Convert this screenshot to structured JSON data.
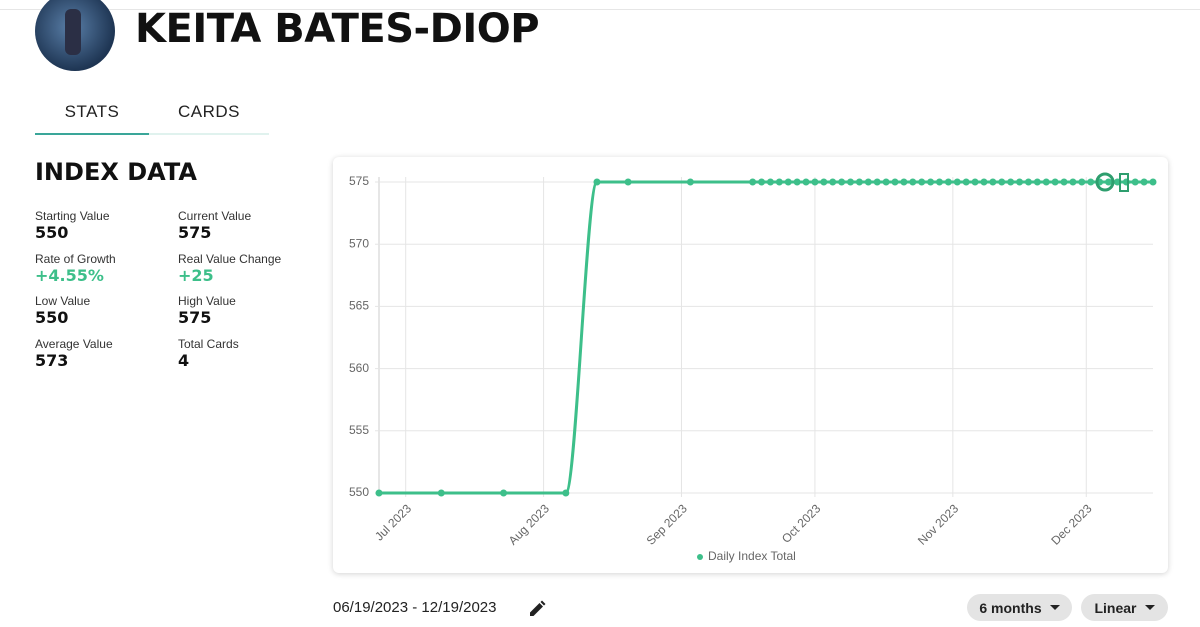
{
  "header": {
    "title": "KEITA BATES-DIOP"
  },
  "tabs": [
    "STATS",
    "CARDS"
  ],
  "index_data": {
    "title": "INDEX DATA",
    "stats": [
      {
        "label": "Starting Value",
        "value": "550"
      },
      {
        "label": "Current Value",
        "value": "575"
      },
      {
        "label": "Rate of Growth",
        "value": "+4.55%"
      },
      {
        "label": "Real Value Change",
        "value": "+25"
      },
      {
        "label": "Low Value",
        "value": "550"
      },
      {
        "label": "High Value",
        "value": "575"
      },
      {
        "label": "Average Value",
        "value": "573"
      },
      {
        "label": "Total Cards",
        "value": "4"
      }
    ]
  },
  "chart_data": {
    "type": "line",
    "x": [
      "2023-06-25",
      "2023-07-09",
      "2023-07-23",
      "2023-08-06",
      "2023-08-13",
      "2023-08-20",
      "2023-09-03",
      "2023-09-17",
      "2023-09-19",
      "2023-09-21",
      "2023-09-23",
      "2023-09-25",
      "2023-09-27",
      "2023-09-29",
      "2023-10-01",
      "2023-10-03",
      "2023-10-05",
      "2023-10-07",
      "2023-10-09",
      "2023-10-11",
      "2023-10-13",
      "2023-10-15",
      "2023-10-17",
      "2023-10-19",
      "2023-10-21",
      "2023-10-23",
      "2023-10-25",
      "2023-10-27",
      "2023-10-29",
      "2023-10-31",
      "2023-11-02",
      "2023-11-04",
      "2023-11-06",
      "2023-11-08",
      "2023-11-10",
      "2023-11-12",
      "2023-11-14",
      "2023-11-16",
      "2023-11-18",
      "2023-11-20",
      "2023-11-22",
      "2023-11-24",
      "2023-11-26",
      "2023-11-28",
      "2023-11-30",
      "2023-12-02",
      "2023-12-04",
      "2023-12-06",
      "2023-12-08",
      "2023-12-10",
      "2023-12-12",
      "2023-12-14",
      "2023-12-16"
    ],
    "series": [
      {
        "name": "Daily Index Total",
        "color": "#3dbf8a",
        "values": [
          550,
          550,
          550,
          550,
          575,
          575,
          575,
          575,
          575,
          575,
          575,
          575,
          575,
          575,
          575,
          575,
          575,
          575,
          575,
          575,
          575,
          575,
          575,
          575,
          575,
          575,
          575,
          575,
          575,
          575,
          575,
          575,
          575,
          575,
          575,
          575,
          575,
          575,
          575,
          575,
          575,
          575,
          575,
          575,
          575,
          575,
          575,
          575,
          575,
          575,
          575,
          575,
          575
        ]
      }
    ],
    "xlim": [
      "2023-06-25",
      "2023-12-16"
    ],
    "xticks": [
      {
        "value": "2023-07",
        "label": "Jul 2023"
      },
      {
        "value": "2023-08",
        "label": "Aug 2023"
      },
      {
        "value": "2023-09",
        "label": "Sep 2023"
      },
      {
        "value": "2023-10",
        "label": "Oct 2023"
      },
      {
        "value": "2023-11",
        "label": "Nov 2023"
      },
      {
        "value": "2023-12",
        "label": "Dec 2023"
      }
    ],
    "ylim": [
      550,
      575
    ],
    "yticks": [
      550,
      555,
      560,
      565,
      570,
      575
    ],
    "grid": true,
    "legend": "bottom"
  },
  "controls": {
    "date_range": "06/19/2023 - 12/19/2023",
    "period": "6 months",
    "scale": "Linear"
  }
}
